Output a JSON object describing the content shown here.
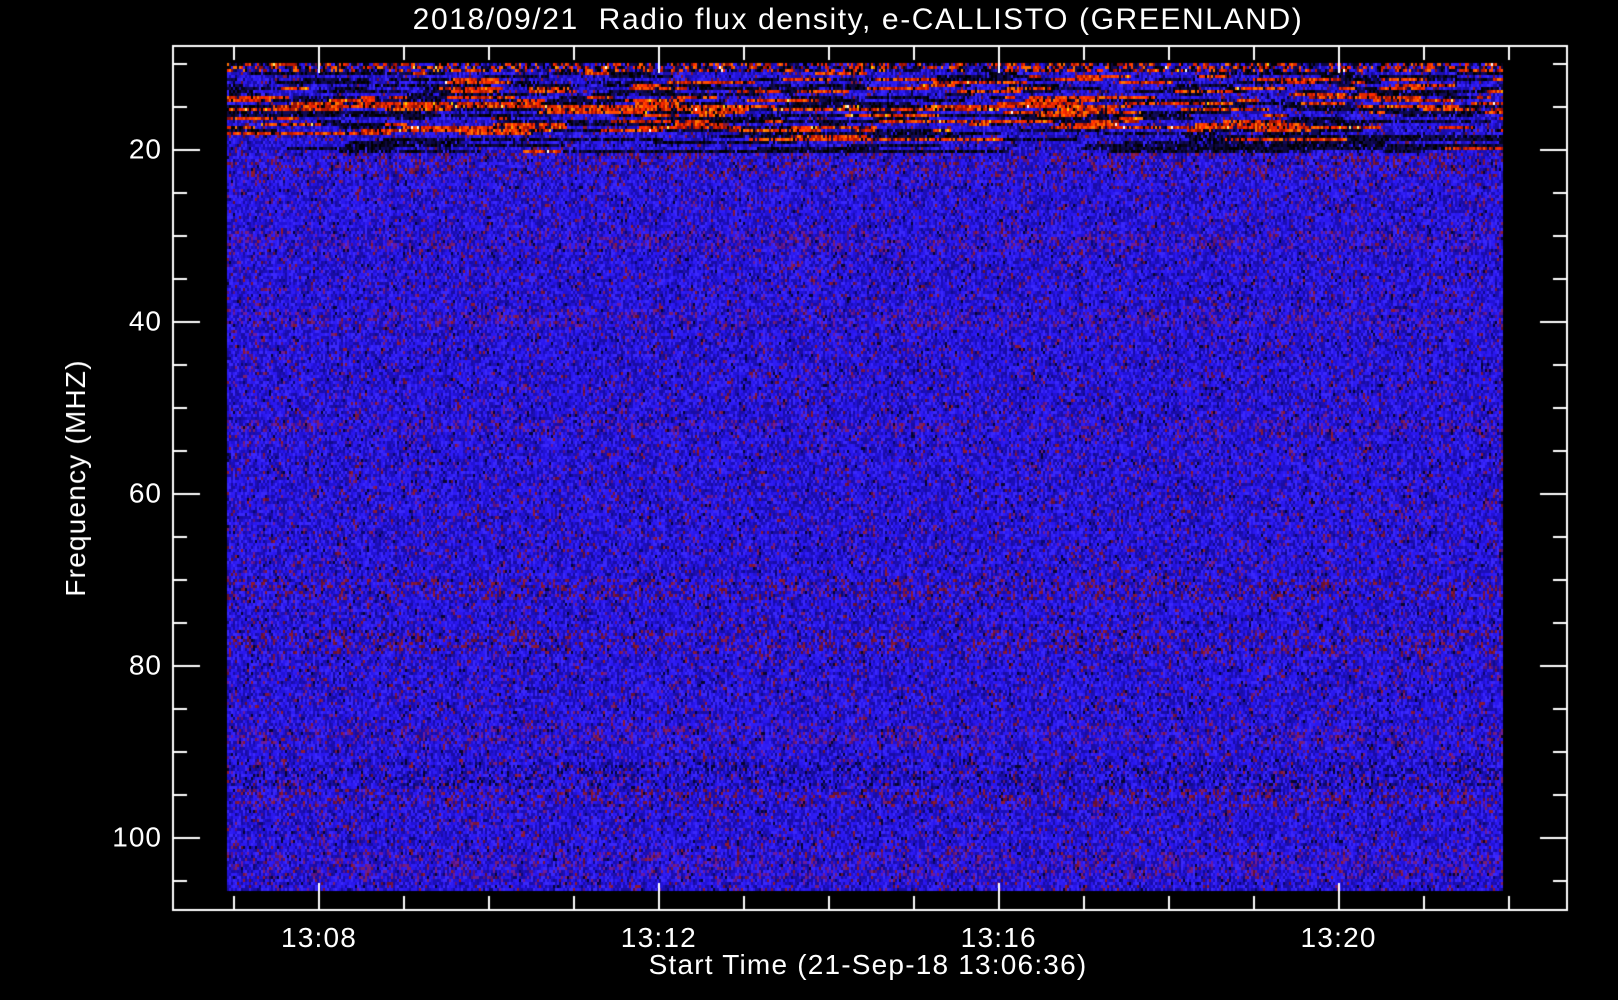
{
  "chart_data": {
    "type": "heatmap",
    "title": "2018/09/21  Radio flux density, e-CALLISTO (GREENLAND)",
    "x_axis": {
      "label": "Start Time (21-Sep-18 13:06:36)",
      "range_minutes_after_1300": [
        6.27,
        22.7
      ],
      "major_ticks": [
        {
          "t": 8,
          "label": "13:08"
        },
        {
          "t": 12,
          "label": "13:12"
        },
        {
          "t": 16,
          "label": "13:16"
        },
        {
          "t": 20,
          "label": "13:20"
        }
      ],
      "minor_step_minutes": 1
    },
    "y_axis": {
      "label": "Frequency (MHZ)",
      "range_mhz": [
        7.8,
        108.5
      ],
      "major_ticks": [
        20,
        40,
        60,
        80,
        100
      ],
      "minor_step_mhz": 5,
      "inverted": true
    },
    "data_extent": {
      "time_minutes_after_1300": [
        6.92,
        21.93
      ],
      "freq_mhz": [
        9.9,
        106.2
      ]
    },
    "colors": {
      "background": "#000000",
      "foreground": "#ffffff",
      "blue": [
        "#2a17ee",
        "#2212d6",
        "#3a28fa",
        "#1c0eb6",
        "#2f1df4",
        "#1a0ca4"
      ],
      "dark": [
        "#000000",
        "#060318",
        "#0c0640",
        "#100a58"
      ],
      "red": [
        "#e02800",
        "#ff4a00",
        "#b81800",
        "#ff7300",
        "#8e0f08",
        "#ff2a00"
      ],
      "hot": [
        "#ffd000",
        "#ffef70",
        "#ffffff",
        "#ffa000"
      ],
      "purple": [
        "#6d1b9c",
        "#581382",
        "#7a1f6e"
      ],
      "dred": [
        "#7c163c",
        "#8e1a30",
        "#661133"
      ],
      "dark2": [
        "#0d0770",
        "#120b8c",
        "#080430"
      ]
    },
    "interference_bands": [
      {
        "f0": 9.9,
        "f1": 10.7,
        "type": "speckle-line",
        "w": {
          "red": 0.42,
          "dark": 0.33,
          "blue": 0.25
        },
        "seg": [
          1,
          3
        ],
        "hot": 0.03
      },
      {
        "f0": 10.7,
        "f1": 14.0,
        "type": "mixed-noise",
        "w": {
          "red": 0.16,
          "dark": 0.32,
          "blue": 0.52
        },
        "seg": [
          5,
          35
        ],
        "hot": 0.01
      },
      {
        "f0": 14.0,
        "f1": 15.3,
        "type": "red-streak",
        "w": {
          "red": 0.55,
          "dark": 0.18,
          "blue": 0.27
        },
        "seg": [
          6,
          45
        ],
        "hot": 0.05
      },
      {
        "f0": 15.3,
        "f1": 16.6,
        "type": "dark-dash",
        "w": {
          "red": 0.22,
          "dark": 0.48,
          "blue": 0.3
        },
        "seg": [
          8,
          50
        ],
        "hot": 0.02
      },
      {
        "f0": 16.6,
        "f1": 17.7,
        "type": "red-streak",
        "w": {
          "red": 0.5,
          "dark": 0.22,
          "blue": 0.28
        },
        "seg": [
          6,
          45
        ],
        "hot": 0.04
      },
      {
        "f0": 17.7,
        "f1": 20.3,
        "type": "black-patches",
        "w": {
          "red": 0.08,
          "dark": 0.42,
          "blue": 0.5
        },
        "seg": [
          15,
          80
        ],
        "hot": 0.005,
        "right_bias": 0.18
      }
    ],
    "body_tint_rows": [
      {
        "mhz": 21.5,
        "w": 1.5,
        "type": "red"
      },
      {
        "mhz": 30.5,
        "w": 1.2,
        "type": "purple"
      },
      {
        "mhz": 39.5,
        "w": 1.0,
        "type": "purple"
      },
      {
        "mhz": 52.0,
        "w": 0.8,
        "type": "purple"
      },
      {
        "mhz": 71.0,
        "w": 1.2,
        "type": "red"
      },
      {
        "mhz": 77.0,
        "w": 1.5,
        "type": "red"
      },
      {
        "mhz": 88.0,
        "w": 1.0,
        "type": "purple"
      },
      {
        "mhz": 92.5,
        "w": 1.5,
        "type": "dark"
      },
      {
        "mhz": 95.0,
        "w": 1.2,
        "type": "red"
      },
      {
        "mhz": 103.0,
        "w": 1.5,
        "type": "purple"
      }
    ]
  }
}
